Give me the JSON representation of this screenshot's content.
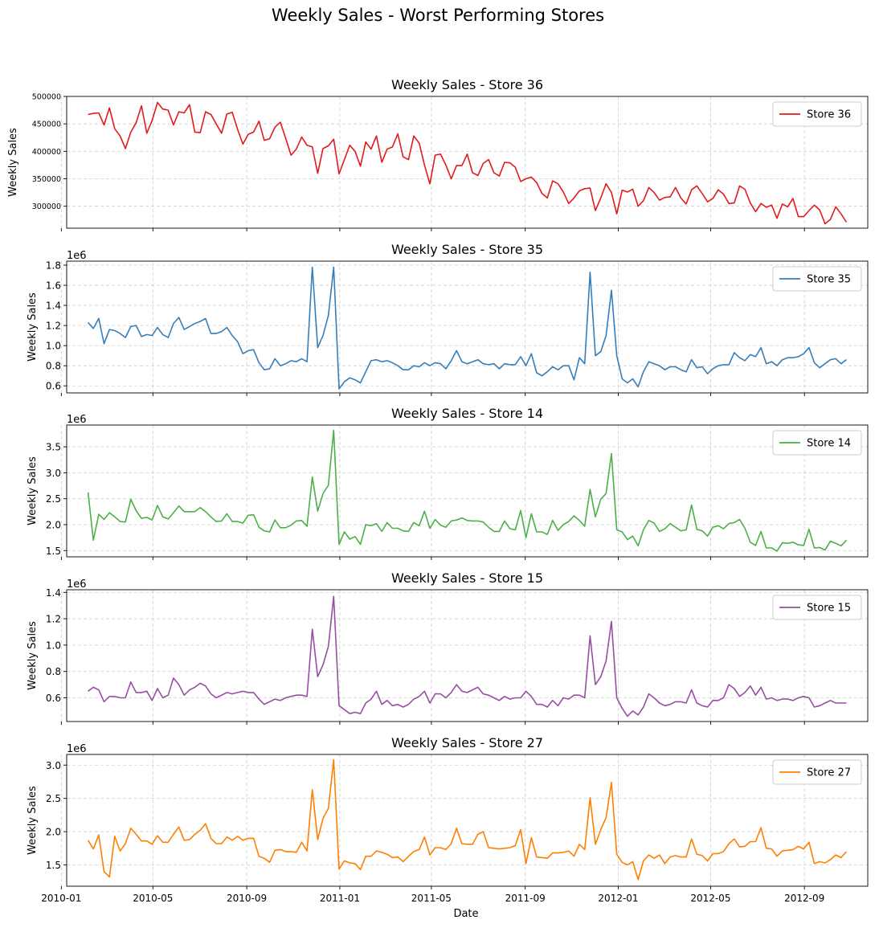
{
  "title": "Weekly Sales - Worst Performing Stores",
  "chart_data": {
    "type": "line",
    "xlabel": "Date",
    "x_ticks": [
      "2010-01",
      "2010-05",
      "2010-09",
      "2011-01",
      "2011-05",
      "2011-09",
      "2012-01",
      "2012-05",
      "2012-09"
    ],
    "x_start": "2010-02-05",
    "x_step_days": 7,
    "grid": true,
    "legend_position": "top-right",
    "panels": [
      {
        "title": "Weekly Sales - Store 36",
        "ylabel": "Weekly Sales",
        "series_name": "Store 36",
        "color": "#e31a1c",
        "offset_label": "",
        "ylim": [
          260000,
          500000
        ],
        "yticks": [
          300000,
          350000,
          400000,
          450000,
          500000
        ],
        "ytick_labels": [
          "300000",
          "350000",
          "400000",
          "450000",
          "500000"
        ],
        "values": [
          467000,
          469000,
          470000,
          448000,
          479000,
          441000,
          428000,
          405000,
          435000,
          452000,
          483000,
          433000,
          456000,
          489000,
          477000,
          475000,
          448000,
          472000,
          470000,
          485000,
          435000,
          434000,
          472000,
          467000,
          450000,
          433000,
          468000,
          471000,
          440000,
          413000,
          431000,
          435000,
          455000,
          420000,
          423000,
          444000,
          453000,
          424000,
          393000,
          404000,
          426000,
          411000,
          408000,
          360000,
          405000,
          410000,
          422000,
          359000,
          385000,
          411000,
          400000,
          373000,
          417000,
          404000,
          428000,
          380000,
          404000,
          408000,
          432000,
          390000,
          385000,
          428000,
          415000,
          375000,
          341000,
          393000,
          395000,
          375000,
          350000,
          374000,
          374000,
          395000,
          361000,
          356000,
          378000,
          385000,
          361000,
          355000,
          380000,
          379000,
          371000,
          345000,
          350000,
          353000,
          343000,
          323000,
          315000,
          346000,
          341000,
          326000,
          305000,
          315000,
          328000,
          332000,
          333000,
          292000,
          315000,
          341000,
          325000,
          286000,
          329000,
          326000,
          331000,
          300000,
          310000,
          334000,
          325000,
          311000,
          316000,
          317000,
          334000,
          315000,
          304000,
          330000,
          337000,
          323000,
          308000,
          314000,
          330000,
          322000,
          305000,
          306000,
          337000,
          331000,
          306000,
          290000,
          305000,
          298000,
          302000,
          278000,
          304000,
          299000,
          314000,
          281000,
          281000,
          292000,
          302000,
          293000,
          268000,
          276000,
          299000,
          286000,
          271000
        ]
      },
      {
        "title": "Weekly Sales - Store 35",
        "ylabel": "Weekly Sales",
        "series_name": "Store 35",
        "color": "#377eb8",
        "offset_label": "1e6",
        "ylim": [
          0.53,
          1.84
        ],
        "yticks": [
          0.6,
          0.8,
          1.0,
          1.2,
          1.4,
          1.6,
          1.8
        ],
        "ytick_labels": [
          "0.6",
          "0.8",
          "1.0",
          "1.2",
          "1.4",
          "1.6",
          "1.8"
        ],
        "values": [
          1.23,
          1.17,
          1.27,
          1.02,
          1.16,
          1.15,
          1.12,
          1.08,
          1.19,
          1.2,
          1.09,
          1.11,
          1.1,
          1.18,
          1.11,
          1.08,
          1.22,
          1.28,
          1.16,
          1.19,
          1.22,
          1.24,
          1.27,
          1.12,
          1.12,
          1.14,
          1.18,
          1.1,
          1.04,
          0.92,
          0.95,
          0.96,
          0.83,
          0.76,
          0.77,
          0.87,
          0.8,
          0.82,
          0.85,
          0.84,
          0.87,
          0.84,
          1.78,
          0.98,
          1.1,
          1.3,
          1.78,
          0.57,
          0.64,
          0.68,
          0.66,
          0.63,
          0.74,
          0.85,
          0.86,
          0.84,
          0.85,
          0.83,
          0.8,
          0.76,
          0.76,
          0.8,
          0.79,
          0.83,
          0.8,
          0.83,
          0.82,
          0.77,
          0.85,
          0.95,
          0.84,
          0.82,
          0.84,
          0.86,
          0.82,
          0.81,
          0.82,
          0.77,
          0.82,
          0.81,
          0.81,
          0.89,
          0.8,
          0.92,
          0.73,
          0.7,
          0.74,
          0.79,
          0.76,
          0.8,
          0.8,
          0.66,
          0.88,
          0.82,
          1.73,
          0.9,
          0.94,
          1.1,
          1.55,
          0.9,
          0.67,
          0.63,
          0.67,
          0.59,
          0.74,
          0.84,
          0.82,
          0.8,
          0.76,
          0.79,
          0.79,
          0.76,
          0.74,
          0.86,
          0.78,
          0.79,
          0.72,
          0.77,
          0.8,
          0.81,
          0.81,
          0.93,
          0.88,
          0.85,
          0.91,
          0.89,
          0.98,
          0.82,
          0.84,
          0.8,
          0.86,
          0.88,
          0.88,
          0.89,
          0.92,
          0.98,
          0.83,
          0.78,
          0.82,
          0.86,
          0.87,
          0.82,
          0.86
        ]
      },
      {
        "title": "Weekly Sales - Store 14",
        "ylabel": "Weekly Sales",
        "series_name": "Store 14",
        "color": "#4daf4a",
        "offset_label": "1e6",
        "ylim": [
          1.38,
          3.92
        ],
        "yticks": [
          1.5,
          2.0,
          2.5,
          3.0,
          3.5
        ],
        "ytick_labels": [
          "1.5",
          "2.0",
          "2.5",
          "3.0",
          "3.5"
        ],
        "values": [
          2.62,
          1.7,
          2.2,
          2.1,
          2.23,
          2.15,
          2.06,
          2.05,
          2.49,
          2.27,
          2.12,
          2.14,
          2.09,
          2.37,
          2.15,
          2.11,
          2.23,
          2.36,
          2.25,
          2.25,
          2.25,
          2.33,
          2.25,
          2.15,
          2.06,
          2.07,
          2.21,
          2.06,
          2.06,
          2.03,
          2.18,
          2.19,
          1.95,
          1.88,
          1.86,
          2.09,
          1.94,
          1.94,
          1.99,
          2.07,
          2.08,
          1.97,
          2.92,
          2.26,
          2.6,
          2.76,
          3.82,
          1.62,
          1.86,
          1.72,
          1.77,
          1.62,
          2.0,
          1.98,
          2.02,
          1.87,
          2.04,
          1.93,
          1.93,
          1.88,
          1.87,
          2.04,
          1.98,
          2.26,
          1.93,
          2.1,
          1.99,
          1.95,
          2.07,
          2.09,
          2.13,
          2.08,
          2.07,
          2.07,
          2.05,
          1.95,
          1.87,
          1.87,
          2.07,
          1.92,
          1.9,
          2.27,
          1.75,
          2.21,
          1.86,
          1.86,
          1.81,
          2.08,
          1.89,
          2.0,
          2.06,
          2.17,
          2.08,
          1.97,
          2.68,
          2.15,
          2.49,
          2.6,
          3.37,
          1.9,
          1.86,
          1.71,
          1.78,
          1.59,
          1.9,
          2.08,
          2.03,
          1.87,
          1.92,
          2.02,
          1.95,
          1.88,
          1.9,
          2.38,
          1.91,
          1.88,
          1.78,
          1.95,
          1.98,
          1.92,
          2.02,
          2.04,
          2.1,
          1.93,
          1.66,
          1.6,
          1.87,
          1.55,
          1.55,
          1.49,
          1.65,
          1.64,
          1.66,
          1.61,
          1.6,
          1.91,
          1.55,
          1.56,
          1.51,
          1.68,
          1.64,
          1.59,
          1.7
        ]
      },
      {
        "title": "Weekly Sales - Store 15",
        "ylabel": "Weekly Sales",
        "series_name": "Store 15",
        "color": "#984ea3",
        "offset_label": "1e6",
        "ylim": [
          0.42,
          1.42
        ],
        "yticks": [
          0.6,
          0.8,
          1.0,
          1.2,
          1.4
        ],
        "ytick_labels": [
          "0.6",
          "0.8",
          "1.0",
          "1.2",
          "1.4"
        ],
        "values": [
          0.65,
          0.68,
          0.66,
          0.57,
          0.61,
          0.61,
          0.6,
          0.6,
          0.72,
          0.64,
          0.64,
          0.65,
          0.58,
          0.67,
          0.6,
          0.62,
          0.75,
          0.7,
          0.62,
          0.66,
          0.68,
          0.71,
          0.69,
          0.63,
          0.6,
          0.62,
          0.64,
          0.63,
          0.64,
          0.65,
          0.64,
          0.64,
          0.59,
          0.55,
          0.57,
          0.59,
          0.58,
          0.6,
          0.61,
          0.62,
          0.62,
          0.61,
          1.12,
          0.76,
          0.85,
          0.99,
          1.37,
          0.54,
          0.51,
          0.48,
          0.49,
          0.48,
          0.56,
          0.59,
          0.65,
          0.55,
          0.58,
          0.54,
          0.55,
          0.53,
          0.55,
          0.59,
          0.61,
          0.65,
          0.56,
          0.63,
          0.63,
          0.6,
          0.64,
          0.7,
          0.65,
          0.64,
          0.66,
          0.68,
          0.63,
          0.62,
          0.6,
          0.58,
          0.61,
          0.59,
          0.6,
          0.6,
          0.65,
          0.61,
          0.55,
          0.55,
          0.53,
          0.58,
          0.54,
          0.6,
          0.59,
          0.62,
          0.62,
          0.6,
          1.07,
          0.7,
          0.76,
          0.88,
          1.18,
          0.6,
          0.52,
          0.46,
          0.5,
          0.47,
          0.53,
          0.63,
          0.6,
          0.56,
          0.54,
          0.55,
          0.57,
          0.57,
          0.56,
          0.66,
          0.56,
          0.54,
          0.53,
          0.58,
          0.58,
          0.6,
          0.7,
          0.67,
          0.61,
          0.64,
          0.69,
          0.62,
          0.68,
          0.59,
          0.6,
          0.58,
          0.59,
          0.59,
          0.58,
          0.6,
          0.61,
          0.6,
          0.53,
          0.54,
          0.56,
          0.58,
          0.56,
          0.56,
          0.56
        ]
      },
      {
        "title": "Weekly Sales - Store 27",
        "ylabel": "Weekly Sales",
        "series_name": "Store 27",
        "color": "#ff7f00",
        "offset_label": "1e6",
        "ylim": [
          1.18,
          3.16
        ],
        "yticks": [
          1.5,
          2.0,
          2.5,
          3.0
        ],
        "ytick_labels": [
          "1.5",
          "2.0",
          "2.5",
          "3.0"
        ],
        "values": [
          1.87,
          1.74,
          1.95,
          1.4,
          1.32,
          1.93,
          1.71,
          1.82,
          2.05,
          1.96,
          1.86,
          1.86,
          1.81,
          1.94,
          1.84,
          1.84,
          1.96,
          2.07,
          1.87,
          1.88,
          1.96,
          2.02,
          2.12,
          1.9,
          1.82,
          1.82,
          1.92,
          1.87,
          1.93,
          1.87,
          1.9,
          1.9,
          1.63,
          1.6,
          1.54,
          1.72,
          1.73,
          1.7,
          1.7,
          1.69,
          1.84,
          1.71,
          2.63,
          1.88,
          2.2,
          2.35,
          3.08,
          1.44,
          1.56,
          1.53,
          1.52,
          1.43,
          1.63,
          1.63,
          1.71,
          1.69,
          1.66,
          1.61,
          1.62,
          1.55,
          1.63,
          1.7,
          1.73,
          1.92,
          1.65,
          1.76,
          1.76,
          1.73,
          1.82,
          2.05,
          1.82,
          1.81,
          1.81,
          1.96,
          2.0,
          1.76,
          1.75,
          1.74,
          1.75,
          1.76,
          1.79,
          2.03,
          1.52,
          1.91,
          1.62,
          1.61,
          1.6,
          1.68,
          1.68,
          1.69,
          1.71,
          1.63,
          1.81,
          1.73,
          2.51,
          1.81,
          2.03,
          2.21,
          2.74,
          1.66,
          1.54,
          1.5,
          1.55,
          1.28,
          1.56,
          1.65,
          1.6,
          1.65,
          1.52,
          1.62,
          1.64,
          1.62,
          1.62,
          1.89,
          1.66,
          1.64,
          1.56,
          1.67,
          1.67,
          1.7,
          1.82,
          1.89,
          1.77,
          1.78,
          1.85,
          1.85,
          2.06,
          1.75,
          1.74,
          1.63,
          1.71,
          1.72,
          1.73,
          1.78,
          1.74,
          1.84,
          1.52,
          1.55,
          1.53,
          1.58,
          1.65,
          1.61,
          1.7
        ]
      }
    ]
  }
}
